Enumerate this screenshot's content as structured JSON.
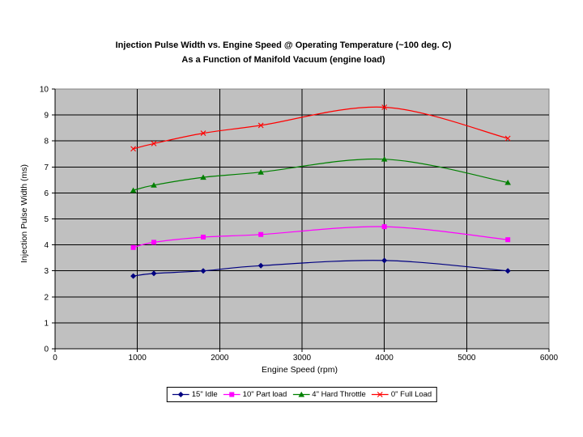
{
  "title": {
    "line1": "Injection Pulse Width vs. Engine Speed @ Operating Temperature (~100 deg. C)",
    "line2": "As a Function of Manifold Vacuum (engine load)"
  },
  "chart_data": {
    "type": "line",
    "title": "Injection Pulse Width vs. Engine Speed @ Operating Temperature (~100 deg. C) As a Function of Manifold Vacuum (engine load)",
    "xlabel": "Engine Speed (rpm)",
    "ylabel": "Injection Pulse Width (ms)",
    "xlim": [
      0,
      6000
    ],
    "ylim": [
      0,
      10
    ],
    "x_ticks": [
      0,
      1000,
      2000,
      3000,
      4000,
      5000,
      6000
    ],
    "y_ticks": [
      0,
      1,
      2,
      3,
      4,
      5,
      6,
      7,
      8,
      9,
      10
    ],
    "grid": true,
    "line_style": "smooth",
    "legend_position": "bottom",
    "plot_background": "#c0c0c0",
    "gridline_color": "#000000",
    "plot_border_color": "#808080",
    "axis_color": "#000000",
    "x": [
      950,
      1200,
      1800,
      2500,
      4000,
      5500
    ],
    "series": [
      {
        "name": "15\" Idle",
        "marker": "diamond",
        "color": "#000080",
        "values": [
          2.8,
          2.9,
          3.0,
          3.2,
          3.4,
          3.0
        ]
      },
      {
        "name": "10\" Part load",
        "marker": "square",
        "color": "#ff00ff",
        "values": [
          3.9,
          4.1,
          4.3,
          4.4,
          4.7,
          4.2
        ]
      },
      {
        "name": "4\" Hard Throttle",
        "marker": "triangle",
        "color": "#008000",
        "values": [
          6.1,
          6.3,
          6.6,
          6.8,
          7.3,
          6.4
        ]
      },
      {
        "name": "0\" Full Load",
        "marker": "x",
        "color": "#ff0000",
        "values": [
          7.7,
          7.9,
          8.3,
          8.6,
          9.3,
          8.1
        ]
      }
    ]
  }
}
